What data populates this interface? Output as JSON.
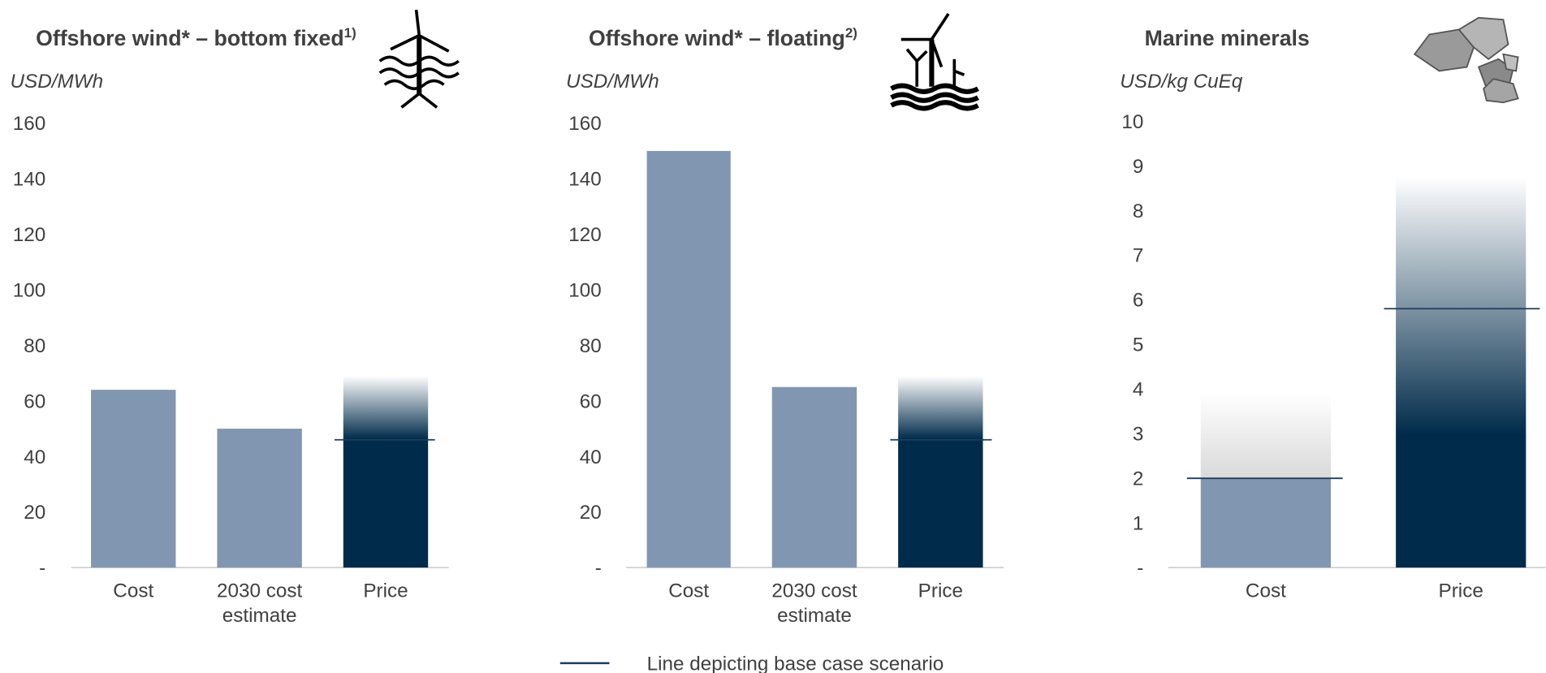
{
  "chart_data": [
    {
      "type": "bar",
      "title": "Offshore wind* – bottom fixed",
      "title_note": "1)",
      "y_label": "USD/MWh",
      "categories": [
        "Cost",
        "2030 cost estimate",
        "Price"
      ],
      "values": [
        64,
        50,
        69
      ],
      "base_case": [
        null,
        null,
        46
      ],
      "colors": [
        "#8196b0",
        "#8196b0",
        "#002b4a"
      ],
      "fade_colors": [
        null,
        null,
        "#002b4a"
      ],
      "ylim": [
        0,
        160
      ],
      "yticks": [
        {
          "value": 0,
          "label": "-"
        },
        20,
        40,
        60,
        80,
        100,
        120,
        140,
        160
      ]
    },
    {
      "type": "bar",
      "title": "Offshore wind* – floating",
      "title_note": "2)",
      "y_label": "USD/MWh",
      "categories": [
        "Cost",
        "2030 cost estimate",
        "Price"
      ],
      "values": [
        150,
        65,
        69
      ],
      "base_case": [
        null,
        null,
        46
      ],
      "colors": [
        "#8196b0",
        "#8196b0",
        "#002b4a"
      ],
      "fade_colors": [
        null,
        null,
        "#002b4a"
      ],
      "ylim": [
        0,
        160
      ],
      "yticks": [
        {
          "value": 0,
          "label": "-"
        },
        20,
        40,
        60,
        80,
        100,
        120,
        140,
        160
      ]
    },
    {
      "type": "bar",
      "title": "Marine minerals",
      "y_label": "USD/kg CuEq",
      "categories": [
        "Cost",
        "Price"
      ],
      "values": [
        3.9,
        8.75
      ],
      "base_case": [
        2,
        5.8
      ],
      "colors": [
        "#8196b0",
        "#002b4a"
      ],
      "fade_colors": [
        "#d9d9d9",
        "#002b4a"
      ],
      "ylim": [
        0,
        10
      ],
      "yticks": [
        {
          "value": 0,
          "label": "-"
        },
        1,
        2,
        3,
        4,
        5,
        6,
        7,
        8,
        9,
        10
      ]
    }
  ],
  "legend": {
    "label": "Line depicting base case scenario",
    "color": "#1f3d5c"
  }
}
